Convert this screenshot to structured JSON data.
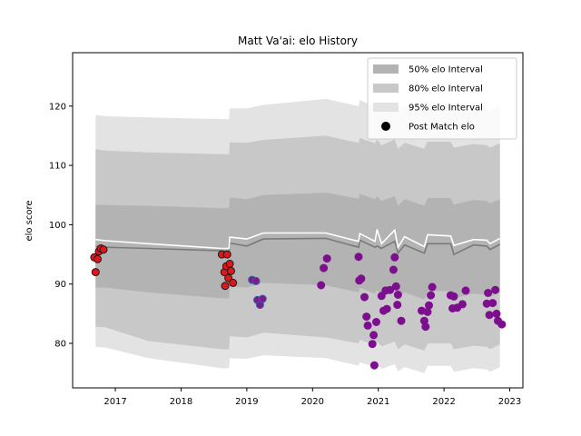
{
  "chart_data": {
    "type": "line",
    "title": "Matt Va'ai: elo History",
    "xlabel": "",
    "ylabel": "elo score",
    "xlim": [
      2016.35,
      2023.2
    ],
    "ylim": [
      72.5,
      129
    ],
    "x_ticks": [
      {
        "value": 2017,
        "label": "2017"
      },
      {
        "value": 2018,
        "label": "2018"
      },
      {
        "value": 2019,
        "label": "2019"
      },
      {
        "value": 2020,
        "label": "2020"
      },
      {
        "value": 2021,
        "label": "2021"
      },
      {
        "value": 2022,
        "label": "2022"
      },
      {
        "value": 2023,
        "label": "2023"
      }
    ],
    "y_ticks": [
      {
        "value": 80,
        "label": "80"
      },
      {
        "value": 90,
        "label": "90"
      },
      {
        "value": 100,
        "label": "100"
      },
      {
        "value": 110,
        "label": "110"
      },
      {
        "value": 120,
        "label": "120"
      }
    ],
    "legend": {
      "placement": "top-right",
      "items": [
        {
          "label": "50% elo Interval",
          "kind": "band",
          "color": "#b3b3b3"
        },
        {
          "label": "80% elo Interval",
          "kind": "band",
          "color": "#c8c8c8"
        },
        {
          "label": "95% elo Interval",
          "kind": "band",
          "color": "#e3e3e3"
        },
        {
          "label": "Post Match elo",
          "kind": "marker",
          "color": "#000000"
        }
      ]
    },
    "band_colors": {
      "b95": "#e3e3e3",
      "b80": "#c8c8c8",
      "b50": "#b3b3b3"
    },
    "line_colors": {
      "mean": "#ffffff",
      "median": "#7a7a7a"
    },
    "bands": [
      {
        "x": 2016.7,
        "mean": 97.5,
        "median": 96.3,
        "b50": [
          89.4,
          103.4
        ],
        "b80": [
          82.8,
          112.7
        ],
        "b95": [
          79.4,
          118.5
        ]
      },
      {
        "x": 2016.85,
        "mean": 97.3,
        "median": 96.2,
        "b50": [
          89.4,
          103.3
        ],
        "b80": [
          82.7,
          112.5
        ],
        "b95": [
          79.3,
          118.3
        ]
      },
      {
        "x": 2017.5,
        "mean": 96.8,
        "median": 96.0,
        "b50": [
          88.6,
          103.2
        ],
        "b80": [
          80.4,
          112.2
        ],
        "b95": [
          77.5,
          118.1
        ]
      },
      {
        "x": 2018.62,
        "mean": 96.0,
        "median": 95.6,
        "b50": [
          87.6,
          102.8
        ],
        "b80": [
          79.0,
          111.9
        ],
        "b95": [
          75.8,
          117.8
        ]
      },
      {
        "x": 2018.73,
        "mean": 96.0,
        "median": 95.5,
        "b50": [
          87.6,
          102.8
        ],
        "b80": [
          79.0,
          111.9
        ],
        "b95": [
          75.8,
          117.8
        ]
      },
      {
        "x": 2018.74,
        "mean": 97.9,
        "median": 96.9,
        "b50": [
          89.6,
          104.6
        ],
        "b80": [
          81.2,
          113.9
        ],
        "b95": [
          77.5,
          119.6
        ]
      },
      {
        "x": 2019.0,
        "mean": 97.6,
        "median": 96.4,
        "b50": [
          89.4,
          104.3
        ],
        "b80": [
          81.0,
          113.8
        ],
        "b95": [
          77.4,
          119.6
        ]
      },
      {
        "x": 2019.25,
        "mean": 98.6,
        "median": 97.6,
        "b50": [
          90.2,
          105.0
        ],
        "b80": [
          81.8,
          114.3
        ],
        "b95": [
          78.0,
          120.2
        ]
      },
      {
        "x": 2020.2,
        "mean": 98.6,
        "median": 97.7,
        "b50": [
          89.8,
          105.4
        ],
        "b80": [
          81.0,
          115.0
        ],
        "b95": [
          77.5,
          121.2
        ]
      },
      {
        "x": 2020.7,
        "mean": 97.2,
        "median": 96.2,
        "b50": [
          88.6,
          104.4
        ],
        "b80": [
          80.0,
          113.8
        ],
        "b95": [
          76.2,
          120.0
        ]
      },
      {
        "x": 2020.72,
        "mean": 98.5,
        "median": 97.4,
        "b50": [
          89.4,
          105.2
        ],
        "b80": [
          80.6,
          114.6
        ],
        "b95": [
          76.8,
          121.0
        ]
      },
      {
        "x": 2020.95,
        "mean": 97.2,
        "median": 96.2,
        "b50": [
          88.4,
          104.3
        ],
        "b80": [
          79.7,
          113.7
        ],
        "b95": [
          76.0,
          119.9
        ]
      },
      {
        "x": 2020.98,
        "mean": 99.2,
        "median": 96.4,
        "b50": [
          89.0,
          104.8
        ],
        "b80": [
          80.3,
          114.4
        ],
        "b95": [
          76.5,
          120.5
        ]
      },
      {
        "x": 2021.05,
        "mean": 96.8,
        "median": 96.0,
        "b50": [
          88.2,
          104.0
        ],
        "b80": [
          79.5,
          113.4
        ],
        "b95": [
          75.7,
          119.6
        ]
      },
      {
        "x": 2021.25,
        "mean": 99.1,
        "median": 97.2,
        "b50": [
          89.0,
          104.8
        ],
        "b80": [
          80.3,
          114.4
        ],
        "b95": [
          76.5,
          120.5
        ]
      },
      {
        "x": 2021.3,
        "mean": 96.2,
        "median": 95.2,
        "b50": [
          87.6,
          103.2
        ],
        "b80": [
          79.0,
          112.8
        ],
        "b95": [
          75.3,
          119.0
        ]
      },
      {
        "x": 2021.4,
        "mean": 98.0,
        "median": 96.6,
        "b50": [
          88.6,
          104.3
        ],
        "b80": [
          79.8,
          113.8
        ],
        "b95": [
          76.0,
          120.0
        ]
      },
      {
        "x": 2021.7,
        "mean": 96.3,
        "median": 95.2,
        "b50": [
          87.4,
          103.2
        ],
        "b80": [
          78.8,
          112.8
        ],
        "b95": [
          75.0,
          119.0
        ]
      },
      {
        "x": 2021.75,
        "mean": 98.3,
        "median": 96.8,
        "b50": [
          88.8,
          104.5
        ],
        "b80": [
          80.0,
          114.0
        ],
        "b95": [
          76.2,
          120.2
        ]
      },
      {
        "x": 2022.1,
        "mean": 98.1,
        "median": 96.8,
        "b50": [
          88.8,
          104.5
        ],
        "b80": [
          80.0,
          114.0
        ],
        "b95": [
          76.2,
          120.2
        ]
      },
      {
        "x": 2022.15,
        "mean": 96.5,
        "median": 95.0,
        "b50": [
          87.6,
          103.4
        ],
        "b80": [
          79.0,
          113.0
        ],
        "b95": [
          75.2,
          119.2
        ]
      },
      {
        "x": 2022.45,
        "mean": 97.5,
        "median": 96.6,
        "b50": [
          88.4,
          104.2
        ],
        "b80": [
          79.6,
          113.6
        ],
        "b95": [
          75.8,
          119.8
        ]
      },
      {
        "x": 2022.65,
        "mean": 97.4,
        "median": 96.4,
        "b50": [
          88.2,
          104.0
        ],
        "b80": [
          79.4,
          113.4
        ],
        "b95": [
          75.6,
          119.6
        ]
      },
      {
        "x": 2022.7,
        "mean": 96.8,
        "median": 95.8,
        "b50": [
          87.8,
          103.6
        ],
        "b80": [
          79.0,
          113.0
        ],
        "b95": [
          75.2,
          119.2
        ]
      },
      {
        "x": 2022.85,
        "mean": 97.7,
        "median": 96.7,
        "b50": [
          88.6,
          104.3
        ],
        "b80": [
          79.8,
          113.7
        ],
        "b95": [
          76.0,
          119.9
        ]
      }
    ],
    "point_groups": [
      {
        "fill": "#e0161b",
        "edge": "#1a1a1a",
        "points": [
          [
            2016.68,
            94.5
          ],
          [
            2016.7,
            92.0
          ],
          [
            2016.73,
            94.2
          ],
          [
            2016.75,
            95.5
          ],
          [
            2016.78,
            96.0
          ],
          [
            2016.82,
            95.8
          ],
          [
            2018.62,
            95.0
          ],
          [
            2018.66,
            92.0
          ],
          [
            2018.67,
            89.7
          ],
          [
            2018.69,
            93.0
          ],
          [
            2018.7,
            95.0
          ],
          [
            2018.72,
            91.0
          ],
          [
            2018.74,
            93.4
          ],
          [
            2018.76,
            92.2
          ],
          [
            2018.79,
            90.2
          ]
        ]
      },
      {
        "fill": "#7d1a8c",
        "edge": "#3a5ea8",
        "points": [
          [
            2019.08,
            90.7
          ],
          [
            2019.14,
            90.5
          ],
          [
            2019.16,
            87.3
          ],
          [
            2019.2,
            86.5
          ],
          [
            2019.24,
            87.5
          ]
        ]
      },
      {
        "fill": "#7d0f8f",
        "edge": "#7d0f8f",
        "points": [
          [
            2020.13,
            89.8
          ],
          [
            2020.17,
            92.7
          ],
          [
            2020.22,
            94.3
          ],
          [
            2020.7,
            94.6
          ],
          [
            2020.71,
            90.6
          ],
          [
            2020.74,
            90.9
          ],
          [
            2020.79,
            87.8
          ],
          [
            2020.82,
            84.5
          ],
          [
            2020.84,
            83.0
          ],
          [
            2020.91,
            79.9
          ],
          [
            2020.93,
            81.4
          ],
          [
            2020.94,
            76.3
          ],
          [
            2020.97,
            83.6
          ],
          [
            2021.05,
            88.0
          ],
          [
            2021.08,
            85.5
          ],
          [
            2021.11,
            88.9
          ],
          [
            2021.13,
            85.8
          ],
          [
            2021.18,
            89.0
          ],
          [
            2021.23,
            92.4
          ],
          [
            2021.25,
            94.5
          ],
          [
            2021.27,
            89.6
          ],
          [
            2021.29,
            86.5
          ],
          [
            2021.3,
            88.2
          ],
          [
            2021.35,
            83.8
          ],
          [
            2021.66,
            85.5
          ],
          [
            2021.7,
            83.8
          ],
          [
            2021.72,
            82.8
          ],
          [
            2021.75,
            85.3
          ],
          [
            2021.77,
            86.4
          ],
          [
            2021.8,
            88.1
          ],
          [
            2021.82,
            89.5
          ],
          [
            2022.1,
            88.1
          ],
          [
            2022.13,
            85.9
          ],
          [
            2022.15,
            87.9
          ],
          [
            2022.2,
            86.0
          ],
          [
            2022.28,
            86.6
          ],
          [
            2022.33,
            88.9
          ],
          [
            2022.65,
            86.7
          ],
          [
            2022.67,
            88.5
          ],
          [
            2022.69,
            84.8
          ],
          [
            2022.74,
            86.8
          ],
          [
            2022.78,
            89.0
          ],
          [
            2022.8,
            85.0
          ],
          [
            2022.82,
            83.8
          ],
          [
            2022.88,
            83.2
          ]
        ]
      }
    ]
  }
}
